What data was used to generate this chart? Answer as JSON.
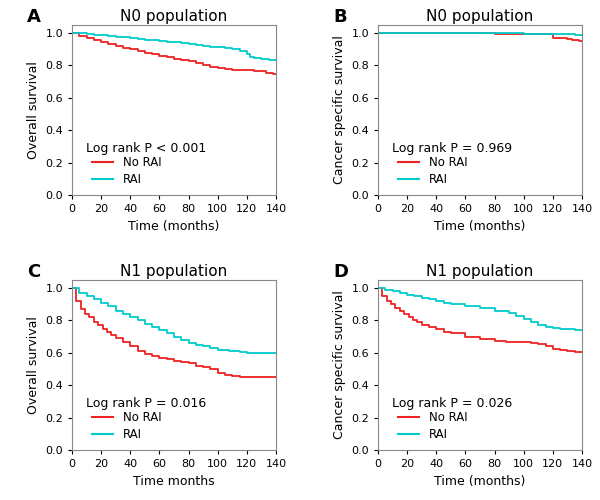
{
  "panels": [
    {
      "label": "A",
      "title": "N0 population",
      "ylabel": "Overall survival",
      "xlabel": "Time (months)",
      "ptext": "Log rank P < 0.001",
      "ylim": [
        0.0,
        1.05
      ],
      "xlim": [
        0,
        140
      ],
      "yticks": [
        0.0,
        0.2,
        0.4,
        0.6,
        0.8,
        1.0
      ],
      "xticks": [
        0,
        20,
        40,
        60,
        80,
        100,
        120,
        140
      ],
      "curve_no_rai": {
        "t": [
          0,
          5,
          10,
          15,
          20,
          25,
          30,
          35,
          40,
          45,
          50,
          55,
          60,
          65,
          70,
          75,
          80,
          85,
          90,
          95,
          100,
          105,
          110,
          115,
          120,
          125,
          130,
          133,
          138,
          140
        ],
        "s": [
          1.0,
          0.983,
          0.97,
          0.958,
          0.946,
          0.934,
          0.922,
          0.911,
          0.9,
          0.89,
          0.88,
          0.87,
          0.861,
          0.852,
          0.843,
          0.835,
          0.825,
          0.815,
          0.804,
          0.793,
          0.785,
          0.778,
          0.775,
          0.772,
          0.769,
          0.766,
          0.763,
          0.755,
          0.75,
          0.748
        ]
      },
      "curve_rai": {
        "t": [
          0,
          5,
          10,
          15,
          20,
          25,
          30,
          35,
          40,
          45,
          50,
          55,
          60,
          65,
          70,
          75,
          80,
          85,
          90,
          95,
          100,
          105,
          110,
          115,
          120,
          122,
          125,
          130,
          135,
          140
        ],
        "s": [
          1.0,
          0.998,
          0.995,
          0.991,
          0.987,
          0.982,
          0.978,
          0.974,
          0.97,
          0.965,
          0.96,
          0.956,
          0.951,
          0.946,
          0.942,
          0.937,
          0.932,
          0.927,
          0.922,
          0.917,
          0.912,
          0.906,
          0.9,
          0.889,
          0.87,
          0.852,
          0.845,
          0.838,
          0.833,
          0.828
        ]
      }
    },
    {
      "label": "B",
      "title": "N0 population",
      "ylabel": "Cancer specific survival",
      "xlabel": "Time (months)",
      "ptext": "Log rank P = 0.969",
      "ylim": [
        0.0,
        1.05
      ],
      "xlim": [
        0,
        140
      ],
      "yticks": [
        0.0,
        0.2,
        0.4,
        0.6,
        0.8,
        1.0
      ],
      "xticks": [
        0,
        20,
        40,
        60,
        80,
        100,
        120,
        140
      ],
      "curve_no_rai": {
        "t": [
          0,
          20,
          40,
          60,
          80,
          100,
          110,
          120,
          130,
          133,
          138,
          140
        ],
        "s": [
          1.0,
          0.999,
          0.999,
          0.998,
          0.997,
          0.996,
          0.995,
          0.97,
          0.962,
          0.958,
          0.952,
          0.948
        ]
      },
      "curve_rai": {
        "t": [
          0,
          20,
          40,
          60,
          80,
          100,
          110,
          120,
          130,
          135,
          140
        ],
        "s": [
          1.0,
          1.0,
          0.999,
          0.999,
          0.998,
          0.997,
          0.996,
          0.995,
          0.992,
          0.987,
          0.98
        ]
      }
    },
    {
      "label": "C",
      "title": "N1 population",
      "ylabel": "Overall survival",
      "xlabel": "Time months",
      "ptext": "Log rank P = 0.016",
      "ylim": [
        0.0,
        1.05
      ],
      "xlim": [
        0,
        140
      ],
      "yticks": [
        0.0,
        0.2,
        0.4,
        0.6,
        0.8,
        1.0
      ],
      "xticks": [
        0,
        20,
        40,
        60,
        80,
        100,
        120,
        140
      ],
      "curve_no_rai": {
        "t": [
          0,
          3,
          6,
          9,
          12,
          15,
          18,
          21,
          24,
          27,
          30,
          35,
          40,
          45,
          50,
          55,
          60,
          65,
          70,
          75,
          80,
          85,
          90,
          95,
          100,
          105,
          110,
          115,
          120,
          125,
          130,
          135,
          140
        ],
        "s": [
          1.0,
          0.92,
          0.87,
          0.84,
          0.82,
          0.79,
          0.77,
          0.75,
          0.73,
          0.71,
          0.69,
          0.67,
          0.64,
          0.61,
          0.59,
          0.58,
          0.57,
          0.56,
          0.55,
          0.545,
          0.535,
          0.52,
          0.51,
          0.5,
          0.475,
          0.465,
          0.455,
          0.45,
          0.45,
          0.45,
          0.45,
          0.45,
          0.445
        ]
      },
      "curve_rai": {
        "t": [
          0,
          5,
          10,
          15,
          20,
          25,
          30,
          35,
          40,
          45,
          50,
          55,
          60,
          65,
          70,
          75,
          80,
          85,
          90,
          95,
          100,
          105,
          108,
          115,
          120,
          125,
          130,
          135,
          140
        ],
        "s": [
          1.0,
          0.97,
          0.95,
          0.93,
          0.91,
          0.89,
          0.86,
          0.84,
          0.82,
          0.8,
          0.78,
          0.76,
          0.74,
          0.72,
          0.7,
          0.68,
          0.66,
          0.65,
          0.64,
          0.63,
          0.62,
          0.615,
          0.61,
          0.605,
          0.6,
          0.6,
          0.6,
          0.6,
          0.6
        ]
      }
    },
    {
      "label": "D",
      "title": "N1 population",
      "ylabel": "Cancer specific survival",
      "xlabel": "Time (months)",
      "ptext": "Log rank P = 0.026",
      "ylim": [
        0.0,
        1.05
      ],
      "xlim": [
        0,
        140
      ],
      "yticks": [
        0.0,
        0.2,
        0.4,
        0.6,
        0.8,
        1.0
      ],
      "xticks": [
        0,
        20,
        40,
        60,
        80,
        100,
        120,
        140
      ],
      "curve_no_rai": {
        "t": [
          0,
          3,
          6,
          9,
          12,
          15,
          18,
          21,
          24,
          27,
          30,
          35,
          40,
          45,
          50,
          60,
          70,
          80,
          88,
          90,
          100,
          105,
          110,
          115,
          120,
          125,
          130,
          135,
          140
        ],
        "s": [
          1.0,
          0.95,
          0.92,
          0.9,
          0.88,
          0.86,
          0.84,
          0.82,
          0.8,
          0.79,
          0.77,
          0.76,
          0.75,
          0.73,
          0.72,
          0.7,
          0.685,
          0.675,
          0.67,
          0.668,
          0.665,
          0.66,
          0.655,
          0.64,
          0.625,
          0.615,
          0.61,
          0.608,
          0.605
        ]
      },
      "curve_rai": {
        "t": [
          0,
          5,
          10,
          15,
          20,
          25,
          30,
          35,
          40,
          45,
          50,
          60,
          70,
          80,
          90,
          95,
          100,
          105,
          110,
          115,
          120,
          125,
          130,
          135,
          140
        ],
        "s": [
          1.0,
          0.99,
          0.98,
          0.97,
          0.96,
          0.95,
          0.94,
          0.93,
          0.92,
          0.91,
          0.9,
          0.89,
          0.875,
          0.86,
          0.845,
          0.83,
          0.81,
          0.79,
          0.77,
          0.76,
          0.755,
          0.75,
          0.745,
          0.74,
          0.735
        ]
      }
    }
  ],
  "color_no_rai": "#EE2222",
  "color_rai": "#00CCCC",
  "legend_label_no_rai": "No RAI",
  "legend_label_rai": "RAI",
  "bg_color": "#FFFFFF",
  "tick_fontsize": 8,
  "label_fontsize": 9,
  "title_fontsize": 11,
  "legend_fontsize": 8.5,
  "ptext_fontsize": 9
}
